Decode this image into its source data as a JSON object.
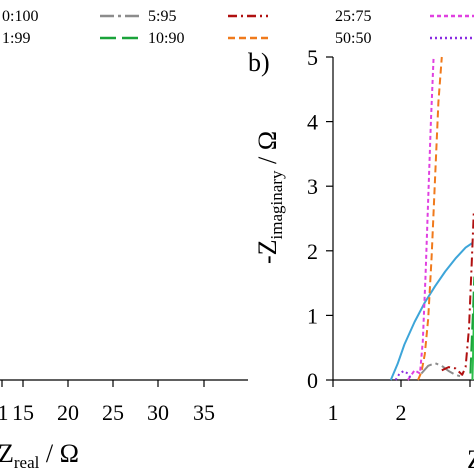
{
  "legend": [
    {
      "label": "0:100",
      "color": "#3da5d9",
      "dash": ""
    },
    {
      "label": "1:99",
      "color": "#2bbf4a",
      "dash": ""
    },
    {
      "label": "5:95",
      "color": "#8c8c8c",
      "dash": "14,4,3,4"
    },
    {
      "label": "10:90",
      "color": "#1aa33a",
      "dash": "16,6"
    },
    {
      "label": "25:75",
      "color": "#b01010",
      "dash": "9,4,2,4"
    },
    {
      "label": "50:50",
      "color": "#f07a1c",
      "dash": "7,4"
    },
    {
      "label": "",
      "color": "#e040e0",
      "dash": "4,3"
    },
    {
      "label": "",
      "color": "#8a2be2",
      "dash": "2,3"
    }
  ],
  "left_panel": {
    "xlabel": "Z",
    "xlabel_sub": "real",
    "xlabel_unit": " / Ω",
    "xticks": [
      "15",
      "20",
      "25",
      "30",
      "35"
    ]
  },
  "chart_data": [
    {
      "type": "line",
      "panel": "a",
      "xlabel": "Zreal / Ω",
      "x_ticks_visible": [
        15,
        20,
        25,
        30,
        35
      ],
      "xlim": [
        12,
        36
      ],
      "note_series": []
    },
    {
      "type": "line",
      "panel": "b",
      "panel_label": "b)",
      "xlabel": "Z",
      "ylabel": "-Zimaginary / Ω",
      "xlim": [
        1,
        3.1
      ],
      "ylim": [
        0,
        5
      ],
      "xticks": [
        1,
        2
      ],
      "yticks": [
        0,
        1,
        2,
        3,
        4,
        5
      ],
      "series": [
        {
          "name": "0:100",
          "color": "#3da5d9",
          "dash": "",
          "x": [
            1.85,
            1.95,
            2.05,
            2.2,
            2.35,
            2.5,
            2.65,
            2.8,
            2.95,
            3.05
          ],
          "y": [
            0.0,
            0.25,
            0.55,
            0.9,
            1.2,
            1.45,
            1.68,
            1.88,
            2.05,
            2.12
          ]
        },
        {
          "name": "1:99",
          "color": "#2bbf4a",
          "dash": "",
          "x": [
            3.05,
            3.06,
            3.07,
            3.08
          ],
          "y": [
            0.0,
            0.4,
            0.9,
            1.3
          ]
        },
        {
          "name": "5:95",
          "color": "#8c8c8c",
          "dash": "14,4,3,4",
          "x": [
            2.3,
            2.4,
            2.5,
            2.6,
            2.7,
            2.8,
            2.9
          ],
          "y": [
            0.1,
            0.22,
            0.26,
            0.22,
            0.14,
            0.08,
            0.05
          ]
        },
        {
          "name": "10:90",
          "color": "#1aa33a",
          "dash": "16,6",
          "x": [
            3.02,
            3.04,
            3.06,
            3.07,
            3.08
          ],
          "y": [
            0.1,
            0.6,
            1.1,
            1.4,
            1.6
          ]
        },
        {
          "name": "25:75",
          "color": "#b01010",
          "dash": "9,4,2,4",
          "x": [
            2.6,
            2.7,
            2.8,
            2.9,
            2.95,
            3.0,
            3.04,
            3.07
          ],
          "y": [
            0.15,
            0.2,
            0.18,
            0.08,
            0.2,
            0.8,
            1.8,
            2.6
          ]
        },
        {
          "name": "50:50",
          "color": "#f07a1c",
          "dash": "7,4",
          "x": [
            2.25,
            2.3,
            2.35,
            2.4,
            2.45,
            2.5,
            2.55,
            2.6
          ],
          "y": [
            0.0,
            0.12,
            0.4,
            0.95,
            1.9,
            3.1,
            4.3,
            5.0
          ]
        },
        {
          "name": "",
          "color": "#e040e0",
          "dash": "4,3",
          "x": [
            2.1,
            2.2,
            2.28,
            2.32,
            2.36,
            2.4,
            2.44,
            2.48
          ],
          "y": [
            0.0,
            0.15,
            0.1,
            0.6,
            1.6,
            2.8,
            4.0,
            5.0
          ]
        },
        {
          "name": "",
          "color": "#8a2be2",
          "dash": "2,3",
          "x": [
            1.92,
            1.98,
            2.04,
            2.1,
            2.16
          ],
          "y": [
            0.0,
            0.1,
            0.14,
            0.1,
            0.0
          ]
        }
      ]
    }
  ]
}
